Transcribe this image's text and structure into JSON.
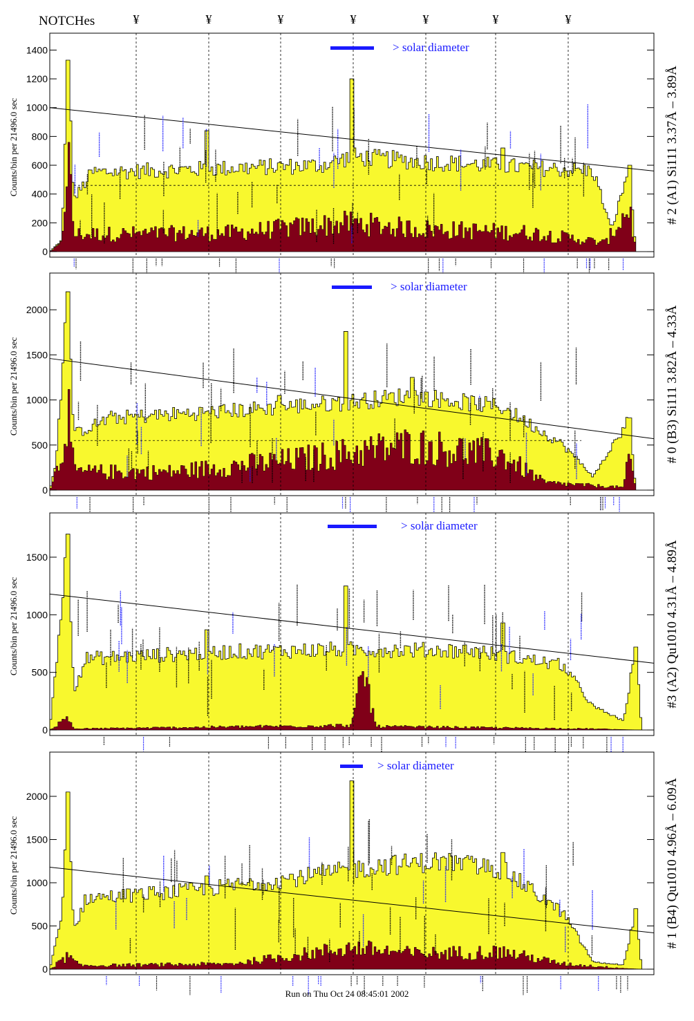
{
  "header": {
    "notch_label": "NOTCHes",
    "notch_glyph": "¥",
    "notch_count": 7
  },
  "footer": {
    "run_text": "Run on Thu Oct 24 08:45:01 2002"
  },
  "colors": {
    "fill": "#f8f82e",
    "dark": "#800018",
    "annot_blue": "#1a1aff",
    "line": "#000000"
  },
  "chart_data": [
    {
      "type": "area",
      "title": "# 2 (A1) Si111  3.37Å – 3.89Å",
      "ylabel": "Counts/bin per  21496.0 sec",
      "ylim": [
        0,
        1450
      ],
      "yticks": [
        0,
        200,
        400,
        600,
        800,
        1000,
        1200,
        1400
      ],
      "solar_label": "> solar diameter",
      "total_counts_profile": [
        [
          0,
          0
        ],
        [
          0.02,
          80
        ],
        [
          0.03,
          1330
        ],
        [
          0.04,
          360
        ],
        [
          0.07,
          550
        ],
        [
          0.45,
          600
        ],
        [
          0.5,
          660
        ],
        [
          0.6,
          630
        ],
        [
          0.9,
          560
        ],
        [
          0.93,
          150
        ],
        [
          0.96,
          600
        ],
        [
          0.97,
          0
        ]
      ],
      "dark_counts_profile": [
        [
          0,
          0
        ],
        [
          0.02,
          60
        ],
        [
          0.03,
          700
        ],
        [
          0.04,
          120
        ],
        [
          0.3,
          130
        ],
        [
          0.5,
          200
        ],
        [
          0.6,
          160
        ],
        [
          0.8,
          130
        ],
        [
          0.92,
          60
        ],
        [
          0.96,
          310
        ],
        [
          0.97,
          0
        ]
      ],
      "spikes": [
        [
          0.03,
          1330
        ],
        [
          0.26,
          840
        ],
        [
          0.5,
          1200
        ],
        [
          0.75,
          720
        ],
        [
          0.96,
          600
        ]
      ],
      "trend_line": [
        [
          0,
          1000
        ],
        [
          1,
          560
        ]
      ],
      "baseline_level": 460
    },
    {
      "type": "area",
      "title": "# 0 (B3) Si111  3.82Å – 4.33Å",
      "ylabel": "Counts/bin per  21496.0 sec",
      "ylim": [
        0,
        2300
      ],
      "yticks": [
        0,
        500,
        1000,
        1500,
        2000
      ],
      "solar_label": "> solar diameter",
      "total_counts_profile": [
        [
          0,
          0
        ],
        [
          0.01,
          300
        ],
        [
          0.03,
          2200
        ],
        [
          0.04,
          620
        ],
        [
          0.1,
          800
        ],
        [
          0.3,
          880
        ],
        [
          0.5,
          980
        ],
        [
          0.6,
          1050
        ],
        [
          0.75,
          920
        ],
        [
          0.85,
          500
        ],
        [
          0.9,
          150
        ],
        [
          0.96,
          800
        ],
        [
          0.97,
          0
        ]
      ],
      "dark_counts_profile": [
        [
          0,
          0
        ],
        [
          0.02,
          400
        ],
        [
          0.03,
          950
        ],
        [
          0.04,
          200
        ],
        [
          0.2,
          200
        ],
        [
          0.4,
          330
        ],
        [
          0.6,
          500
        ],
        [
          0.75,
          380
        ],
        [
          0.82,
          80
        ],
        [
          0.95,
          30
        ],
        [
          0.96,
          400
        ],
        [
          0.97,
          0
        ]
      ],
      "spikes": [
        [
          0.03,
          2200
        ],
        [
          0.38,
          1050
        ],
        [
          0.49,
          1760
        ],
        [
          0.6,
          1250
        ],
        [
          0.96,
          800
        ]
      ],
      "trend_line": [
        [
          0,
          1460
        ],
        [
          1,
          570
        ]
      ],
      "baseline_level": 550
    },
    {
      "type": "area",
      "title": "#3 (A2) Qu1010  4.31Å – 4.89Å",
      "ylabel": "Counts/bin per  21496.0 sec",
      "ylim": [
        0,
        1800
      ],
      "yticks": [
        0,
        500,
        1000,
        1500
      ],
      "solar_label": "> solar diameter",
      "total_counts_profile": [
        [
          0,
          0
        ],
        [
          0.02,
          1100
        ],
        [
          0.03,
          1700
        ],
        [
          0.04,
          350
        ],
        [
          0.06,
          620
        ],
        [
          0.3,
          680
        ],
        [
          0.5,
          700
        ],
        [
          0.7,
          690
        ],
        [
          0.85,
          560
        ],
        [
          0.9,
          200
        ],
        [
          0.95,
          80
        ],
        [
          0.97,
          720
        ],
        [
          0.98,
          0
        ]
      ],
      "dark_counts_profile": [
        [
          0,
          0
        ],
        [
          0.02,
          70
        ],
        [
          0.03,
          120
        ],
        [
          0.04,
          10
        ],
        [
          0.5,
          40
        ],
        [
          0.52,
          520
        ],
        [
          0.54,
          30
        ],
        [
          0.9,
          10
        ],
        [
          0.98,
          0
        ]
      ],
      "spikes": [
        [
          0.03,
          1700
        ],
        [
          0.26,
          870
        ],
        [
          0.49,
          1250
        ],
        [
          0.75,
          930
        ],
        [
          0.97,
          720
        ]
      ],
      "trend_line": [
        [
          0,
          1180
        ],
        [
          1,
          580
        ]
      ]
    },
    {
      "type": "area",
      "title": "# 1 (B4) Qu1010 4.96Å – 6.09Å",
      "ylabel": "Counts/bin per  21496.0 sec",
      "ylim": [
        0,
        2400
      ],
      "yticks": [
        0,
        500,
        1000,
        1500,
        2000
      ],
      "solar_label": "> solar diameter",
      "total_counts_profile": [
        [
          0,
          0
        ],
        [
          0.02,
          600
        ],
        [
          0.03,
          2050
        ],
        [
          0.04,
          450
        ],
        [
          0.06,
          820
        ],
        [
          0.25,
          920
        ],
        [
          0.4,
          1050
        ],
        [
          0.55,
          1200
        ],
        [
          0.65,
          1250
        ],
        [
          0.75,
          1150
        ],
        [
          0.85,
          650
        ],
        [
          0.9,
          80
        ],
        [
          0.95,
          50
        ],
        [
          0.97,
          700
        ],
        [
          0.98,
          0
        ]
      ],
      "dark_counts_profile": [
        [
          0,
          0
        ],
        [
          0.03,
          150
        ],
        [
          0.05,
          40
        ],
        [
          0.3,
          60
        ],
        [
          0.5,
          250
        ],
        [
          0.6,
          180
        ],
        [
          0.75,
          200
        ],
        [
          0.85,
          60
        ],
        [
          0.95,
          10
        ],
        [
          0.98,
          0
        ]
      ],
      "spikes": [
        [
          0.03,
          2050
        ],
        [
          0.26,
          1080
        ],
        [
          0.5,
          2180
        ],
        [
          0.75,
          1350
        ],
        [
          0.97,
          700
        ]
      ],
      "trend_line": [
        [
          0,
          1180
        ],
        [
          1,
          420
        ]
      ]
    }
  ]
}
